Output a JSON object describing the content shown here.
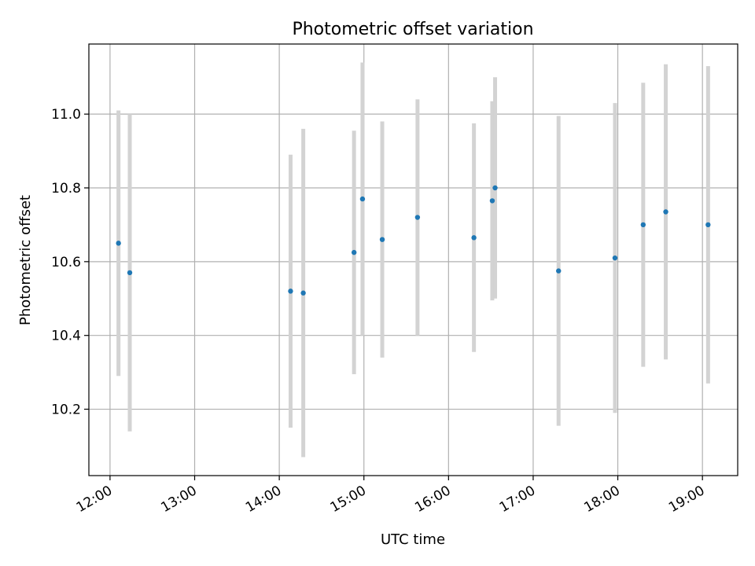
{
  "chart_data": {
    "type": "scatter",
    "title": "Photometric offset variation",
    "xlabel": "UTC time",
    "ylabel": "Photometric offset",
    "x_ticks": [
      "12:00",
      "13:00",
      "14:00",
      "15:00",
      "16:00",
      "17:00",
      "18:00",
      "19:00"
    ],
    "y_ticks": [
      "10.2",
      "10.4",
      "10.6",
      "10.8",
      "11.0"
    ],
    "xlim": [
      "11:45",
      "19:25"
    ],
    "ylim": [
      10.02,
      11.19
    ],
    "grid": true,
    "point_color": "#1f77b4",
    "errorbar_color": "#d3d3d3",
    "points": [
      {
        "time": "12:06",
        "y": 10.65,
        "err": 0.36
      },
      {
        "time": "12:14",
        "y": 10.57,
        "err": 0.43
      },
      {
        "time": "14:08",
        "y": 10.52,
        "err": 0.37
      },
      {
        "time": "14:17",
        "y": 10.515,
        "err": 0.445
      },
      {
        "time": "14:53",
        "y": 10.625,
        "err": 0.33
      },
      {
        "time": "14:59",
        "y": 10.77,
        "err": 0.37
      },
      {
        "time": "15:13",
        "y": 10.66,
        "err": 0.32
      },
      {
        "time": "15:38",
        "y": 10.72,
        "err": 0.32
      },
      {
        "time": "16:18",
        "y": 10.665,
        "err": 0.31
      },
      {
        "time": "16:31",
        "y": 10.765,
        "err": 0.27
      },
      {
        "time": "16:33",
        "y": 10.8,
        "err": 0.3
      },
      {
        "time": "17:18",
        "y": 10.575,
        "err": 0.42
      },
      {
        "time": "17:58",
        "y": 10.61,
        "err": 0.42
      },
      {
        "time": "18:18",
        "y": 10.7,
        "err": 0.385
      },
      {
        "time": "18:34",
        "y": 10.735,
        "err": 0.4
      },
      {
        "time": "19:04",
        "y": 10.7,
        "err": 0.43
      }
    ]
  }
}
